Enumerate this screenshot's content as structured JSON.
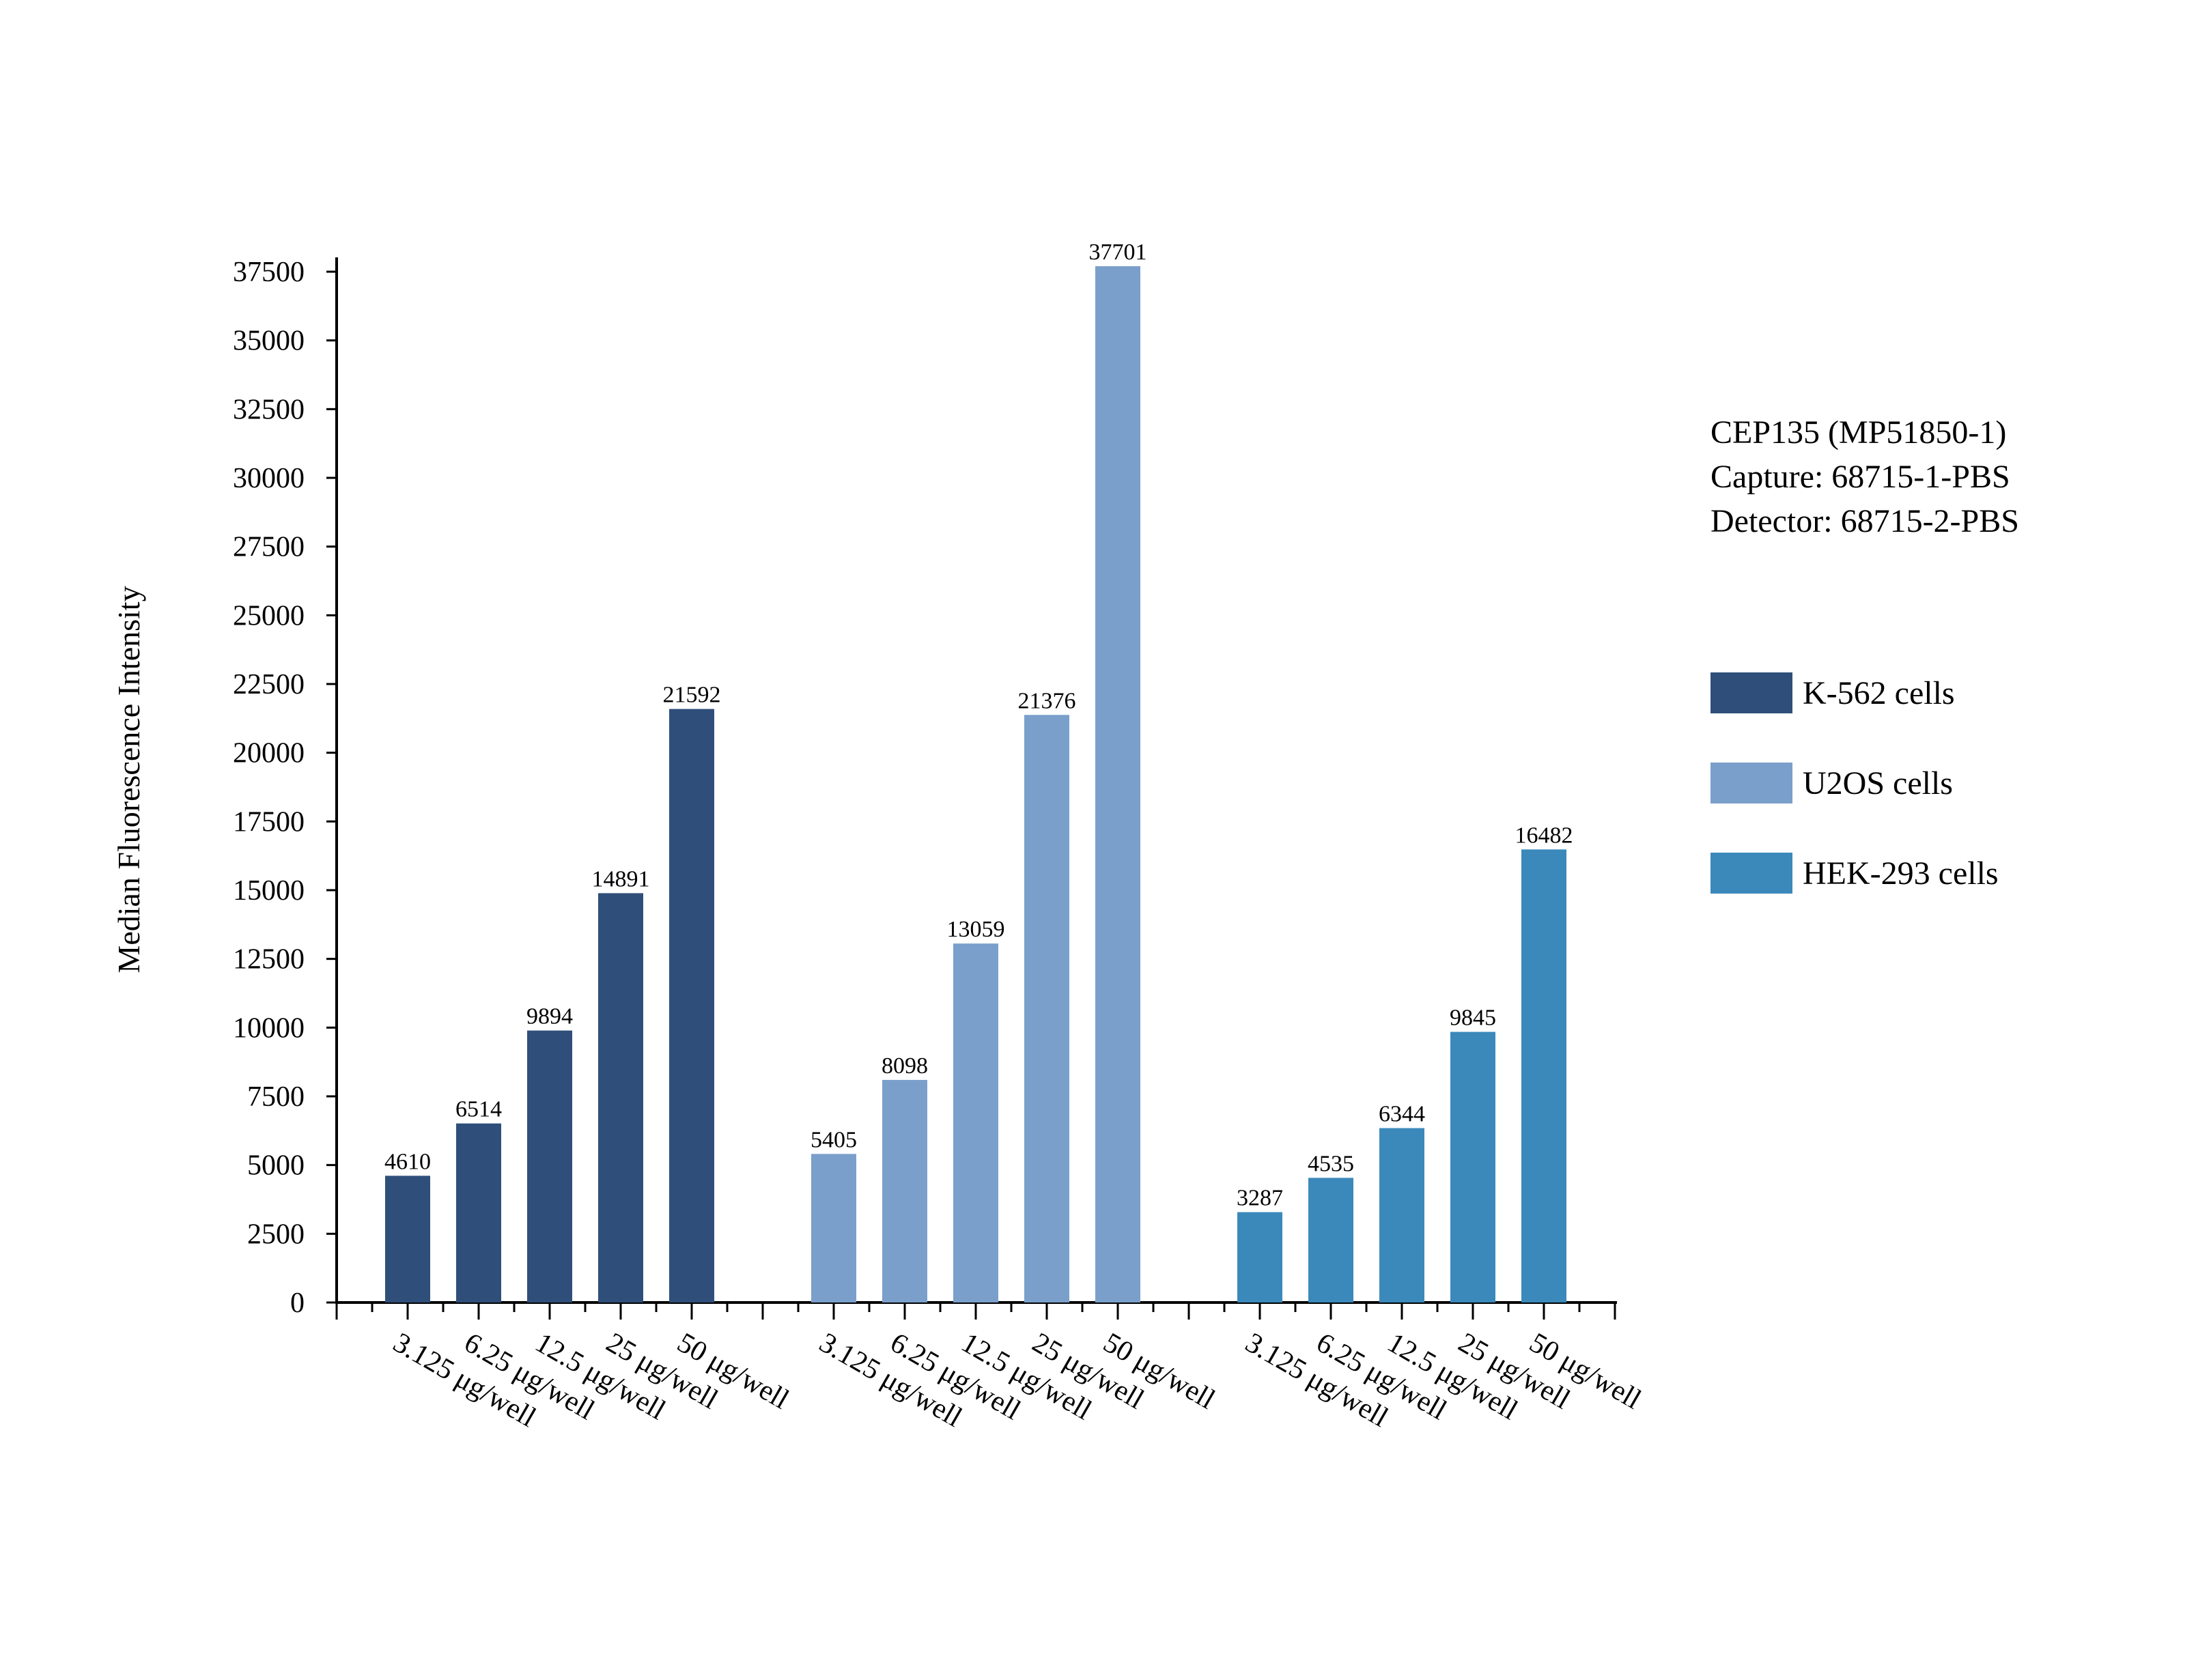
{
  "chart_data": {
    "type": "bar",
    "title": "",
    "xlabel": "",
    "ylabel": "Median Fluorescence Intensity",
    "ylim": [
      0,
      37500
    ],
    "yticks": [
      0,
      2500,
      5000,
      7500,
      10000,
      12500,
      15000,
      17500,
      20000,
      22500,
      25000,
      27500,
      30000,
      32500,
      35000,
      37500
    ],
    "categories": [
      "3.125 μg/well",
      "6.25 μg/well",
      "12.5 μg/well",
      "25 μg/well",
      "50 μg/well"
    ],
    "series": [
      {
        "name": "K-562 cells",
        "color": "#2f4f7a",
        "values": [
          4610,
          6514,
          9894,
          14891,
          21592
        ]
      },
      {
        "name": "U2OS cells",
        "color": "#7b9fcb",
        "values": [
          5405,
          8098,
          13059,
          21376,
          37701
        ]
      },
      {
        "name": "HEK-293 cells",
        "color": "#3b89ba",
        "values": [
          3287,
          4535,
          6344,
          9845,
          16482
        ]
      }
    ],
    "annotation_lines": [
      "CEP135 (MP51850-1)",
      "Capture: 68715-1-PBS",
      "Detector: 68715-2-PBS"
    ],
    "legend_position": "right",
    "grid": false
  }
}
